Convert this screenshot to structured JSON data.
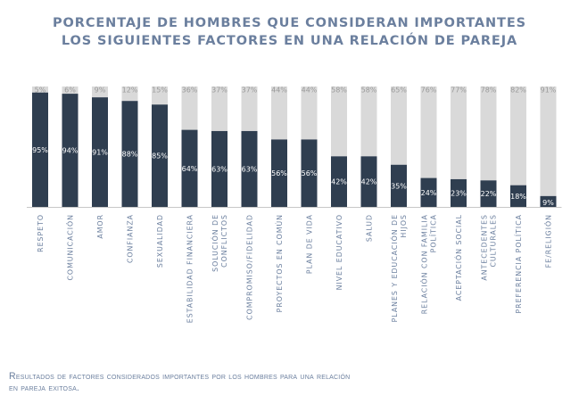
{
  "title_line1": "PORCENTAJE DE HOMBRES QUE CONSIDERAN IMPORTANTES",
  "title_line2": "LOS SIGUIENTES FACTORES EN UNA RELACIÓN DE PAREJA",
  "caption_line1": "Resultados de factores considerados importantes por los hombres para una relación",
  "caption_line2": "en pareja exitosa.",
  "colors": {
    "yes": "#2f3e50",
    "no": "#d9d9d9",
    "text": "#6b7f9e",
    "label_yes": "#ffffff",
    "label_no": "#9a9a9a"
  },
  "chart_data": {
    "type": "bar",
    "stacked": true,
    "ylim": [
      0,
      100
    ],
    "categories": [
      "RESPETO",
      "COMUNICACIÓN",
      "AMOR",
      "CONFIANZA",
      "SEXUALIDAD",
      "ESTABILIDAD FINANCIERA",
      "SOLUCIÓN DE CONFLICTOS",
      "COMPROMISO/FIDELIDAD",
      "PROYECTOS EN COMÚN",
      "PLAN DE VIDA",
      "NIVEL EDUCATIVO",
      "SALUD",
      "PLANES Y EDUCACIÓN DE HIJOS",
      "RELACIÓN CON FAMILIA POLÍTICA",
      "ACEPTACIÓN SOCIAL",
      "ANTECEDENTES CULTURALES",
      "PREFERENCIA POLÍTICA",
      "FE/RELIGIÓN"
    ],
    "category_lines": [
      [
        "RESPETO"
      ],
      [
        "COMUNICACIÓN"
      ],
      [
        "AMOR"
      ],
      [
        "CONFIANZA"
      ],
      [
        "SEXUALIDAD"
      ],
      [
        "ESTABILIDAD FINANCIERA"
      ],
      [
        "SOLUCIÓN DE",
        "CONFLICTOS"
      ],
      [
        "COMPROMISO/FIDELIDAD"
      ],
      [
        "PROYECTOS EN COMÚN"
      ],
      [
        "PLAN DE VIDA"
      ],
      [
        "NIVEL EDUCATIVO"
      ],
      [
        "SALUD"
      ],
      [
        "PLANES Y EDUCACIÓN DE",
        "HIJOS"
      ],
      [
        "RELACIÓN CON FAMILIA",
        "POLÍTICA"
      ],
      [
        "ACEPTACIÓN SOCIAL"
      ],
      [
        "ANTECEDENTES",
        "CULTURALES"
      ],
      [
        "PREFERENCIA POLÍTICA"
      ],
      [
        "FE/RELIGIÓN"
      ]
    ],
    "series": [
      {
        "values": [
          95,
          94,
          91,
          88,
          85,
          64,
          63,
          63,
          56,
          56,
          42,
          42,
          35,
          24,
          23,
          22,
          18,
          9
        ]
      },
      {
        "values": [
          5,
          6,
          9,
          12,
          15,
          36,
          37,
          37,
          44,
          44,
          58,
          58,
          65,
          76,
          77,
          78,
          82,
          91
        ]
      }
    ],
    "value_labels_yes": [
      "95%",
      "94%",
      "91%",
      "88%",
      "85%",
      "64%",
      "63%",
      "63%",
      "56%",
      "56%",
      "42%",
      "42%",
      "35%",
      "24%",
      "23%",
      "22%",
      "18%",
      "9%"
    ],
    "value_labels_no": [
      "5%",
      "6%",
      "9%",
      "12%",
      "15%",
      "36%",
      "37%",
      "37%",
      "44%",
      "44%",
      "58%",
      "58%",
      "65%",
      "76%",
      "77%",
      "78%",
      "82%",
      "91%"
    ]
  }
}
